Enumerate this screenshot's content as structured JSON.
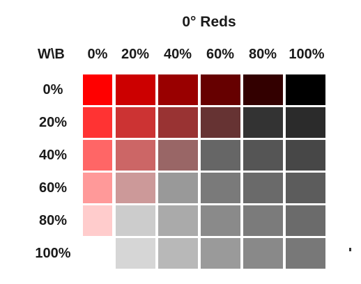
{
  "title": "0° Reds",
  "corner_label": "W\\B",
  "columns": [
    "0%",
    "20%",
    "40%",
    "60%",
    "80%",
    "100%"
  ],
  "rows": [
    "0%",
    "20%",
    "40%",
    "60%",
    "80%",
    "100%"
  ],
  "swatch_colors": [
    [
      "#ff0000",
      "#cc0000",
      "#990000",
      "#660000",
      "#330000",
      "#000000"
    ],
    [
      "#ff3333",
      "#cc3333",
      "#993333",
      "#663333",
      "#333333",
      "#2b2b2b"
    ],
    [
      "#ff6666",
      "#cc6666",
      "#996666",
      "#666666",
      "#555555",
      "#474747"
    ],
    [
      "#ff9999",
      "#cc9999",
      "#999999",
      "#7a7a7a",
      "#6a6a6a",
      "#5c5c5c"
    ],
    [
      "#ffcccc",
      "#cccccc",
      "#aaaaaa",
      "#8a8a8a",
      "#7b7b7b",
      "#6b6b6b"
    ],
    [
      "#ffffff",
      "#d6d6d6",
      "#b8b8b8",
      "#9a9a9a",
      "#898989",
      "#787878"
    ]
  ]
}
